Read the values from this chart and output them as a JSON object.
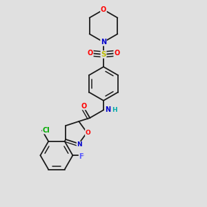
{
  "background_color": "#e0e0e0",
  "bond_color": "#1a1a1a",
  "atom_colors": {
    "O": "#ff0000",
    "N": "#0000cc",
    "S": "#bbbb00",
    "Cl": "#00aa00",
    "F": "#5555ff",
    "C": "#1a1a1a",
    "H": "#00aaaa"
  },
  "figsize": [
    3.0,
    3.0
  ],
  "dpi": 100
}
